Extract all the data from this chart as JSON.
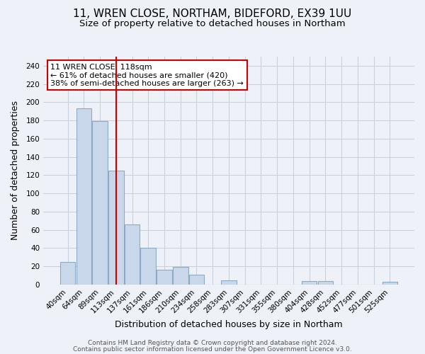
{
  "title": "11, WREN CLOSE, NORTHAM, BIDEFORD, EX39 1UU",
  "subtitle": "Size of property relative to detached houses in Northam",
  "xlabel": "Distribution of detached houses by size in Northam",
  "ylabel": "Number of detached properties",
  "bar_labels": [
    "40sqm",
    "64sqm",
    "89sqm",
    "113sqm",
    "137sqm",
    "161sqm",
    "186sqm",
    "210sqm",
    "234sqm",
    "258sqm",
    "283sqm",
    "307sqm",
    "331sqm",
    "355sqm",
    "380sqm",
    "404sqm",
    "428sqm",
    "452sqm",
    "477sqm",
    "501sqm",
    "525sqm"
  ],
  "bar_values": [
    25,
    193,
    179,
    125,
    66,
    40,
    16,
    19,
    11,
    0,
    5,
    0,
    0,
    0,
    0,
    4,
    4,
    0,
    0,
    0,
    3
  ],
  "bar_color": "#c8d8ea",
  "bar_edge_color": "#8aaac8",
  "vline_x": 3,
  "vline_color": "#cc0000",
  "annotation_title": "11 WREN CLOSE: 118sqm",
  "annotation_line1": "← 61% of detached houses are smaller (420)",
  "annotation_line2": "38% of semi-detached houses are larger (263) →",
  "annotation_box_color": "#ffffff",
  "annotation_box_edge": "#cc0000",
  "ylim": [
    0,
    250
  ],
  "yticks": [
    0,
    20,
    40,
    60,
    80,
    100,
    120,
    140,
    160,
    180,
    200,
    220,
    240
  ],
  "footer1": "Contains HM Land Registry data © Crown copyright and database right 2024.",
  "footer2": "Contains public sector information licensed under the Open Government Licence v3.0.",
  "background_color": "#eef2f8",
  "grid_color": "#c8d0dc",
  "title_fontsize": 11,
  "subtitle_fontsize": 9.5,
  "axis_label_fontsize": 9,
  "tick_fontsize": 7.5,
  "footer_fontsize": 6.5
}
